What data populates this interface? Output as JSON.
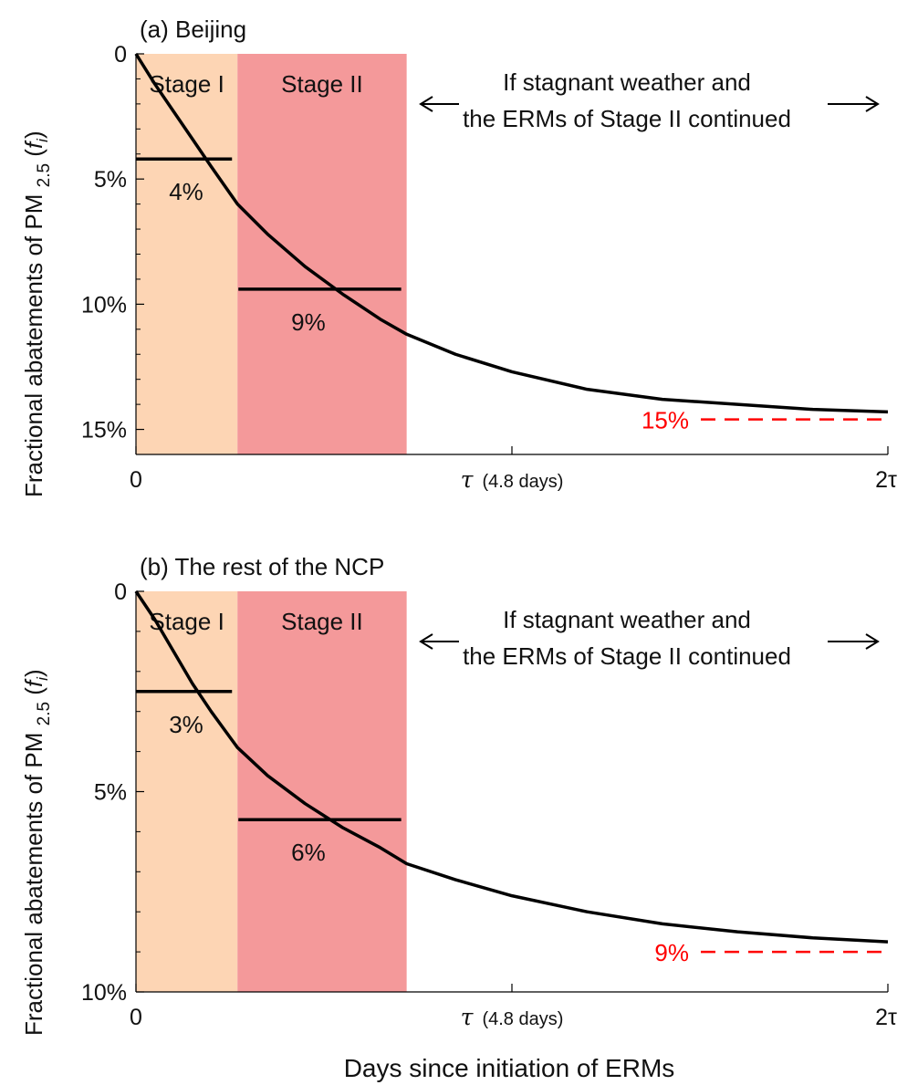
{
  "figure": {
    "xlabel": "Days since initiation of ERMs",
    "ylabel_prefix": "Fractional abatements of PM",
    "ylabel_sub": "2.5",
    "ylabel_var_open": "(",
    "ylabel_var": "f",
    "ylabel_var_sub": "i",
    "ylabel_var_close": ")"
  },
  "colors": {
    "stage1": "#fdd5b4",
    "stage2": "#f4999a",
    "curve": "#000000",
    "asymptote": "#ff0000"
  },
  "chart_data": [
    {
      "type": "line",
      "panel_label": "(a) Beijing",
      "xlim": [
        0,
        2
      ],
      "x_unit": "tau",
      "ylim": [
        0,
        16
      ],
      "y_inverted": true,
      "y_ticks": [
        0,
        5,
        10,
        15
      ],
      "y_tick_labels": [
        "0",
        "5%",
        "10%",
        "15%"
      ],
      "y_minor_step": 1,
      "x_ticks": [
        0,
        1,
        2
      ],
      "x_tick_labels": [
        "0",
        "τ",
        "2τ"
      ],
      "x_tick_note": "(4.8 days)",
      "stages": [
        {
          "label": "Stage I",
          "x0": 0,
          "x1": 0.27,
          "color": "#fdd5b4",
          "mean": 4.2,
          "mean_label": "4%"
        },
        {
          "label": "Stage II",
          "x0": 0.27,
          "x1": 0.72,
          "color": "#f4999a",
          "mean": 9.4,
          "mean_label": "9%"
        }
      ],
      "curve": {
        "x": [
          0,
          0.05,
          0.1,
          0.15,
          0.2,
          0.27,
          0.35,
          0.45,
          0.55,
          0.65,
          0.72,
          0.85,
          1.0,
          1.2,
          1.4,
          1.6,
          1.8,
          2.0
        ],
        "y": [
          0,
          1.2,
          2.3,
          3.4,
          4.5,
          6.0,
          7.2,
          8.5,
          9.6,
          10.6,
          11.2,
          12.0,
          12.7,
          13.4,
          13.8,
          14.0,
          14.2,
          14.3
        ]
      },
      "asymptote": {
        "value": 14.6,
        "label": "15%"
      },
      "annotation": {
        "line1": "If stagnant weather and",
        "line2": "the ERMs of Stage II continued"
      }
    },
    {
      "type": "line",
      "panel_label": "(b) The rest of the NCP",
      "xlim": [
        0,
        2
      ],
      "x_unit": "tau",
      "ylim": [
        0,
        10
      ],
      "y_inverted": true,
      "y_ticks": [
        0,
        5,
        10
      ],
      "y_tick_labels": [
        "0",
        "5%",
        "10%"
      ],
      "y_minor_step": 1,
      "x_ticks": [
        0,
        1,
        2
      ],
      "x_tick_labels": [
        "0",
        "τ",
        "2τ"
      ],
      "x_tick_note": "(4.8 days)",
      "stages": [
        {
          "label": "Stage I",
          "x0": 0,
          "x1": 0.27,
          "color": "#fdd5b4",
          "mean": 2.5,
          "mean_label": "3%"
        },
        {
          "label": "Stage II",
          "x0": 0.27,
          "x1": 0.72,
          "color": "#f4999a",
          "mean": 5.7,
          "mean_label": "6%"
        }
      ],
      "curve": {
        "x": [
          0,
          0.05,
          0.1,
          0.15,
          0.2,
          0.27,
          0.35,
          0.45,
          0.55,
          0.65,
          0.72,
          0.85,
          1.0,
          1.2,
          1.4,
          1.6,
          1.8,
          2.0
        ],
        "y": [
          0,
          0.7,
          1.5,
          2.3,
          3.0,
          3.9,
          4.6,
          5.3,
          5.9,
          6.4,
          6.8,
          7.2,
          7.6,
          8.0,
          8.3,
          8.5,
          8.65,
          8.75
        ]
      },
      "asymptote": {
        "value": 9.0,
        "label": "9%"
      },
      "annotation": {
        "line1": "If stagnant weather and",
        "line2": "the ERMs of Stage II continued"
      }
    }
  ]
}
